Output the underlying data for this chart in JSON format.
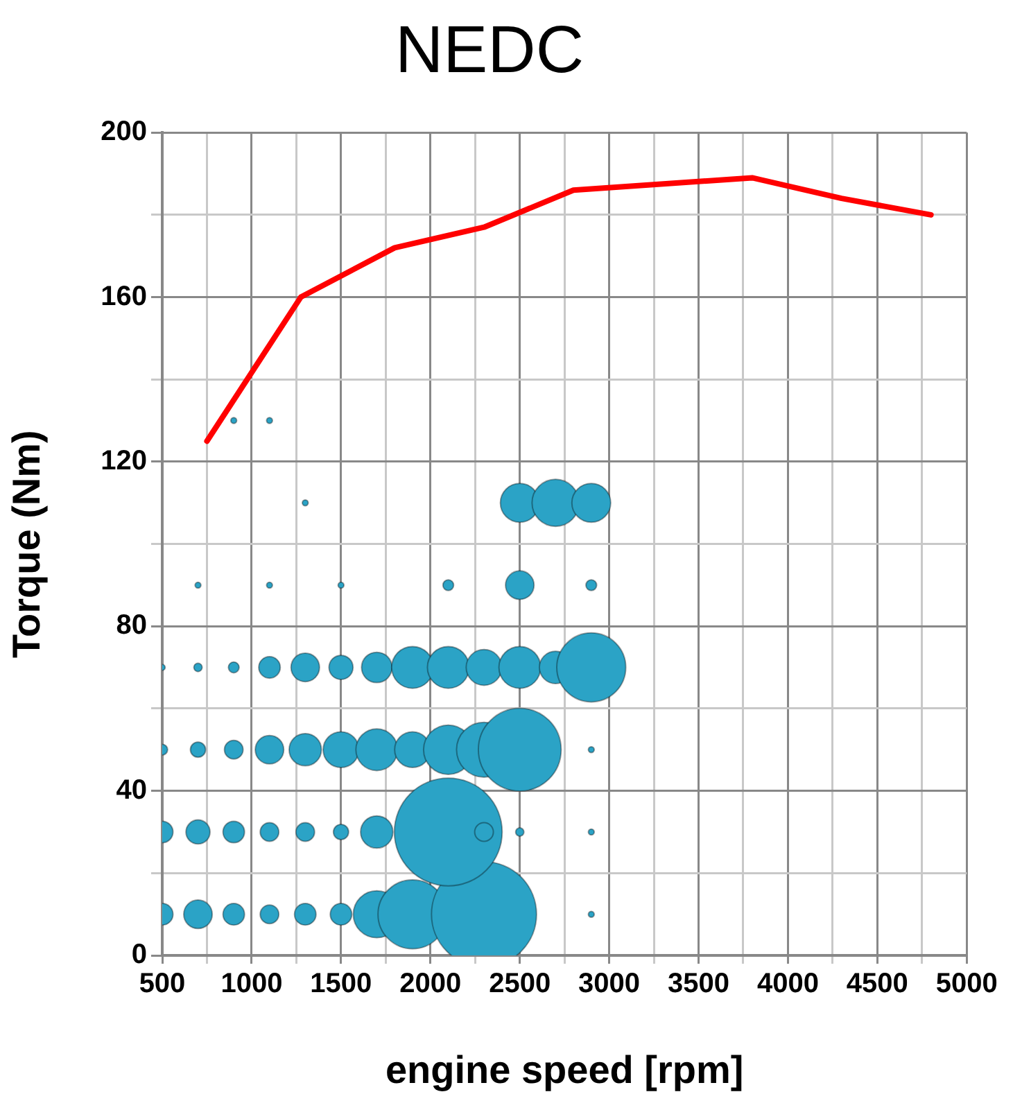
{
  "chart_data": {
    "type": "bubble",
    "title": "NEDC",
    "xlabel": "engine speed [rpm]",
    "ylabel": "Torque (Nm)",
    "xlim": [
      500,
      5000
    ],
    "xticks": [
      500,
      {
        "value": 750,
        "label": null
      },
      1000,
      {
        "value": 1250,
        "label": null
      },
      1500,
      {
        "value": 1750,
        "label": null
      },
      2000,
      {
        "value": 2250,
        "label": null
      },
      2500,
      {
        "value": 2750,
        "label": null
      },
      3000,
      {
        "value": 3250,
        "label": null
      },
      3500,
      {
        "value": 3750,
        "label": null
      },
      4000,
      {
        "value": 4250,
        "label": null
      },
      4500,
      {
        "value": 4750,
        "label": null
      },
      5000
    ],
    "ylim": [
      0,
      200
    ],
    "yticks": [
      0,
      {
        "value": 20,
        "label": null
      },
      40,
      {
        "value": 60,
        "label": null
      },
      80,
      {
        "value": 100,
        "label": null
      },
      120,
      {
        "value": 140,
        "label": null
      },
      160,
      {
        "value": 180,
        "label": null
      },
      200
    ],
    "grid": true,
    "legend": false,
    "series": [
      {
        "color": "#2ba3c6",
        "x": [
          500,
          700,
          900,
          1100,
          1300,
          1500,
          1700,
          1900,
          2300,
          2900,
          500,
          700,
          900,
          1100,
          1300,
          1500,
          1700,
          2100,
          2300,
          2500,
          2900,
          500,
          700,
          900,
          1100,
          1300,
          1500,
          1700,
          1900,
          2100,
          2300,
          2500,
          2900,
          500,
          700,
          900,
          1100,
          1300,
          1500,
          1700,
          1900,
          2100,
          2300,
          2500,
          2700,
          2900,
          700,
          1100,
          1500,
          2100,
          2500,
          2900,
          1300,
          2500,
          2700,
          2900,
          900,
          1100
        ],
        "values": [
          10,
          10,
          10,
          10,
          10,
          10,
          10,
          10,
          10,
          10,
          30,
          30,
          30,
          30,
          30,
          30,
          30,
          30,
          30,
          30,
          30,
          50,
          50,
          50,
          50,
          50,
          50,
          50,
          50,
          50,
          50,
          50,
          50,
          70,
          70,
          70,
          70,
          70,
          70,
          70,
          70,
          70,
          70,
          70,
          70,
          70,
          90,
          90,
          90,
          90,
          90,
          90,
          110,
          110,
          110,
          110,
          130,
          130
        ],
        "sizes": [
          0.04,
          0.07,
          0.04,
          0.03,
          0.04,
          0.04,
          0.19,
          0.41,
          0.95,
          0.003,
          0.04,
          0.05,
          0.04,
          0.03,
          0.03,
          0.02,
          0.09,
          1,
          0.03,
          0.006,
          0.003,
          0.01,
          0.02,
          0.03,
          0.07,
          0.09,
          0.11,
          0.15,
          0.11,
          0.21,
          0.26,
          0.59,
          0.003,
          0.003,
          0.006,
          0.01,
          0.04,
          0.07,
          0.05,
          0.08,
          0.15,
          0.15,
          0.11,
          0.15,
          0.09,
          0.41,
          0.003,
          0.003,
          0.003,
          0.01,
          0.07,
          0.01,
          0.003,
          0.13,
          0.19,
          0.13,
          0.003,
          0.003
        ]
      },
      {
        "type": "line",
        "color": "#ff0000",
        "x": [
          750,
          1275,
          1800,
          2300,
          2800,
          3800,
          4300,
          4800
        ],
        "values": [
          125,
          160,
          172,
          177,
          186,
          189,
          184,
          180
        ]
      }
    ]
  }
}
